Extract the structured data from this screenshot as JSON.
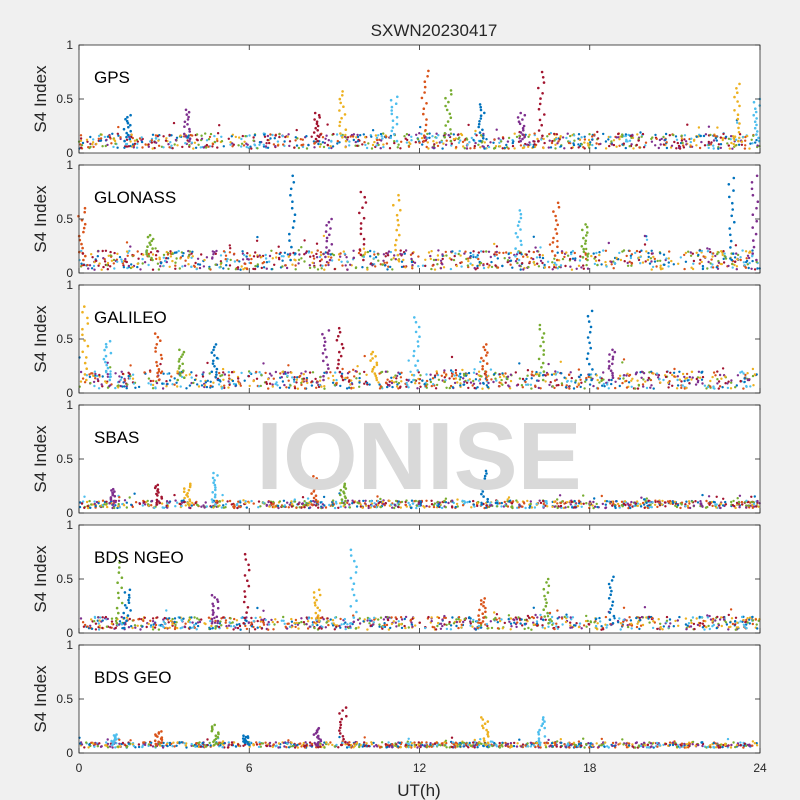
{
  "chart_data": {
    "type": "scatter",
    "title": "SXWN20230417",
    "xlabel": "UT(h)",
    "ylabel": "S4 Index",
    "xlim": [
      0,
      24
    ],
    "ylim": [
      0,
      1
    ],
    "xticks": [
      "0",
      "6",
      "12",
      "18",
      "24"
    ],
    "yticks": [
      "0",
      "0.5",
      "1"
    ],
    "watermark": "IONISE",
    "colors": [
      "#0072bd",
      "#d95319",
      "#edb120",
      "#7e2f8e",
      "#77ac30",
      "#4dbeee",
      "#a2142f"
    ],
    "panels": [
      {
        "name": "GPS",
        "baseline": 0.11,
        "noise": 0.07,
        "spikes": [
          {
            "x": 1.7,
            "y": 0.35
          },
          {
            "x": 3.8,
            "y": 0.4
          },
          {
            "x": 8.4,
            "y": 0.37
          },
          {
            "x": 9.3,
            "y": 0.57
          },
          {
            "x": 11.1,
            "y": 0.52
          },
          {
            "x": 12.2,
            "y": 0.76
          },
          {
            "x": 13.0,
            "y": 0.58
          },
          {
            "x": 14.2,
            "y": 0.45
          },
          {
            "x": 15.6,
            "y": 0.37
          },
          {
            "x": 16.3,
            "y": 0.75
          },
          {
            "x": 23.2,
            "y": 0.64
          },
          {
            "x": 23.9,
            "y": 0.5
          }
        ]
      },
      {
        "name": "GLONASS",
        "baseline": 0.12,
        "noise": 0.09,
        "spikes": [
          {
            "x": 0.1,
            "y": 0.6
          },
          {
            "x": 2.5,
            "y": 0.35
          },
          {
            "x": 7.5,
            "y": 0.9
          },
          {
            "x": 8.8,
            "y": 0.5
          },
          {
            "x": 10.0,
            "y": 0.75
          },
          {
            "x": 11.2,
            "y": 0.72
          },
          {
            "x": 15.5,
            "y": 0.58
          },
          {
            "x": 16.8,
            "y": 0.65
          },
          {
            "x": 17.8,
            "y": 0.45
          },
          {
            "x": 23.0,
            "y": 0.88
          },
          {
            "x": 23.8,
            "y": 0.9
          }
        ]
      },
      {
        "name": "GALILEO",
        "baseline": 0.12,
        "noise": 0.08,
        "spikes": [
          {
            "x": 0.2,
            "y": 0.8
          },
          {
            "x": 1.0,
            "y": 0.48
          },
          {
            "x": 2.8,
            "y": 0.55
          },
          {
            "x": 3.6,
            "y": 0.4
          },
          {
            "x": 4.8,
            "y": 0.45
          },
          {
            "x": 8.7,
            "y": 0.58
          },
          {
            "x": 9.2,
            "y": 0.6
          },
          {
            "x": 10.4,
            "y": 0.38
          },
          {
            "x": 11.9,
            "y": 0.7
          },
          {
            "x": 14.3,
            "y": 0.45
          },
          {
            "x": 16.3,
            "y": 0.63
          },
          {
            "x": 18.0,
            "y": 0.76
          },
          {
            "x": 18.8,
            "y": 0.4
          }
        ]
      },
      {
        "name": "SBAS",
        "baseline": 0.08,
        "noise": 0.035,
        "spikes": [
          {
            "x": 1.2,
            "y": 0.22
          },
          {
            "x": 2.8,
            "y": 0.26
          },
          {
            "x": 3.8,
            "y": 0.27
          },
          {
            "x": 4.8,
            "y": 0.37
          },
          {
            "x": 8.3,
            "y": 0.34
          },
          {
            "x": 9.3,
            "y": 0.27
          },
          {
            "x": 14.3,
            "y": 0.39
          }
        ]
      },
      {
        "name": "BDS NGEO",
        "baseline": 0.09,
        "noise": 0.06,
        "spikes": [
          {
            "x": 1.4,
            "y": 0.7
          },
          {
            "x": 1.7,
            "y": 0.4
          },
          {
            "x": 4.8,
            "y": 0.35
          },
          {
            "x": 5.9,
            "y": 0.73
          },
          {
            "x": 8.4,
            "y": 0.4
          },
          {
            "x": 9.7,
            "y": 0.77
          },
          {
            "x": 14.2,
            "y": 0.32
          },
          {
            "x": 16.5,
            "y": 0.5
          },
          {
            "x": 18.8,
            "y": 0.52
          }
        ]
      },
      {
        "name": "BDS GEO",
        "baseline": 0.075,
        "noise": 0.025,
        "spikes": [
          {
            "x": 1.2,
            "y": 0.17
          },
          {
            "x": 2.8,
            "y": 0.2
          },
          {
            "x": 4.8,
            "y": 0.26
          },
          {
            "x": 5.9,
            "y": 0.16
          },
          {
            "x": 8.4,
            "y": 0.23
          },
          {
            "x": 9.3,
            "y": 0.42
          },
          {
            "x": 14.3,
            "y": 0.33
          },
          {
            "x": 16.3,
            "y": 0.33
          }
        ]
      }
    ]
  }
}
